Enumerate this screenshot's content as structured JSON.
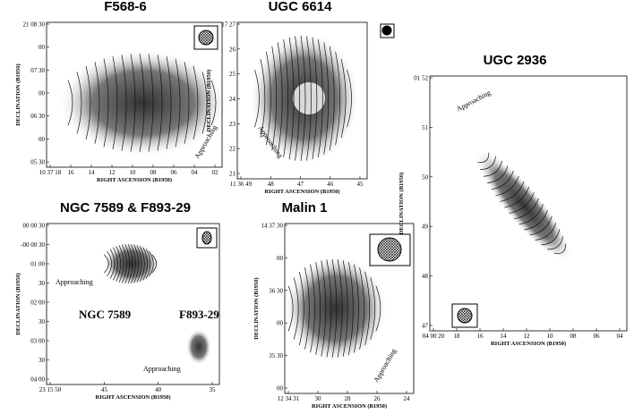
{
  "panels": [
    {
      "title": "F568-6",
      "xlabel": "RIGHT ASCENSION (B1950)",
      "ylabel": "DECLINATION (B1950)",
      "xticks": [
        "10 37 18",
        "16",
        "14",
        "12",
        "10",
        "08",
        "06",
        "04",
        "02"
      ],
      "yticks": [
        "21 08 30",
        "00",
        "07 30",
        "00",
        "06 30",
        "00",
        "05 30"
      ],
      "annotations": [
        "Approaching"
      ]
    },
    {
      "title": "UGC 6614",
      "xlabel": "RIGHT ASCENSION (B1950)",
      "ylabel": "DECLINATION (B1950)",
      "xticks": [
        "11 36 49",
        "48",
        "47",
        "46",
        "45"
      ],
      "yticks": [
        "17 27",
        "26",
        "25",
        "24",
        "23",
        "22",
        "21"
      ],
      "annotations": [
        "Approaching"
      ]
    },
    {
      "title": "UGC 2936",
      "xlabel": "RIGHT ASCENSION (B1950)",
      "ylabel": "DECLINATION (B1950)",
      "xticks": [
        "04 00 20",
        "18",
        "16",
        "14",
        "12",
        "10",
        "08",
        "06",
        "04"
      ],
      "yticks": [
        "01 52",
        "51",
        "50",
        "49",
        "48",
        "47"
      ],
      "annotations": [
        "Approaching"
      ]
    },
    {
      "title": "NGC 7589 & F893-29",
      "xlabel": "RIGHT ASCENSION (B1950)",
      "ylabel": "DECLINATION (B1950)",
      "xticks": [
        "23 15 50",
        "45",
        "40",
        "35"
      ],
      "yticks": [
        "00 00 30",
        "-00 00 30",
        "01 00",
        "30",
        "02 00",
        "30",
        "03 00",
        "30",
        "04 00"
      ],
      "annotations": [
        "Approaching",
        "NGC 7589",
        "F893-29",
        "Approaching"
      ]
    },
    {
      "title": "Malin 1",
      "xlabel": "RIGHT ASCENSION (B1950)",
      "ylabel": "DECLINATION (B1950)",
      "xticks": [
        "12 34 31",
        "30",
        "28",
        "26",
        "24"
      ],
      "yticks": [
        "14 37 30",
        "00",
        "36 30",
        "00",
        "35 30",
        "00"
      ],
      "annotations": [
        "Approaching"
      ]
    }
  ]
}
